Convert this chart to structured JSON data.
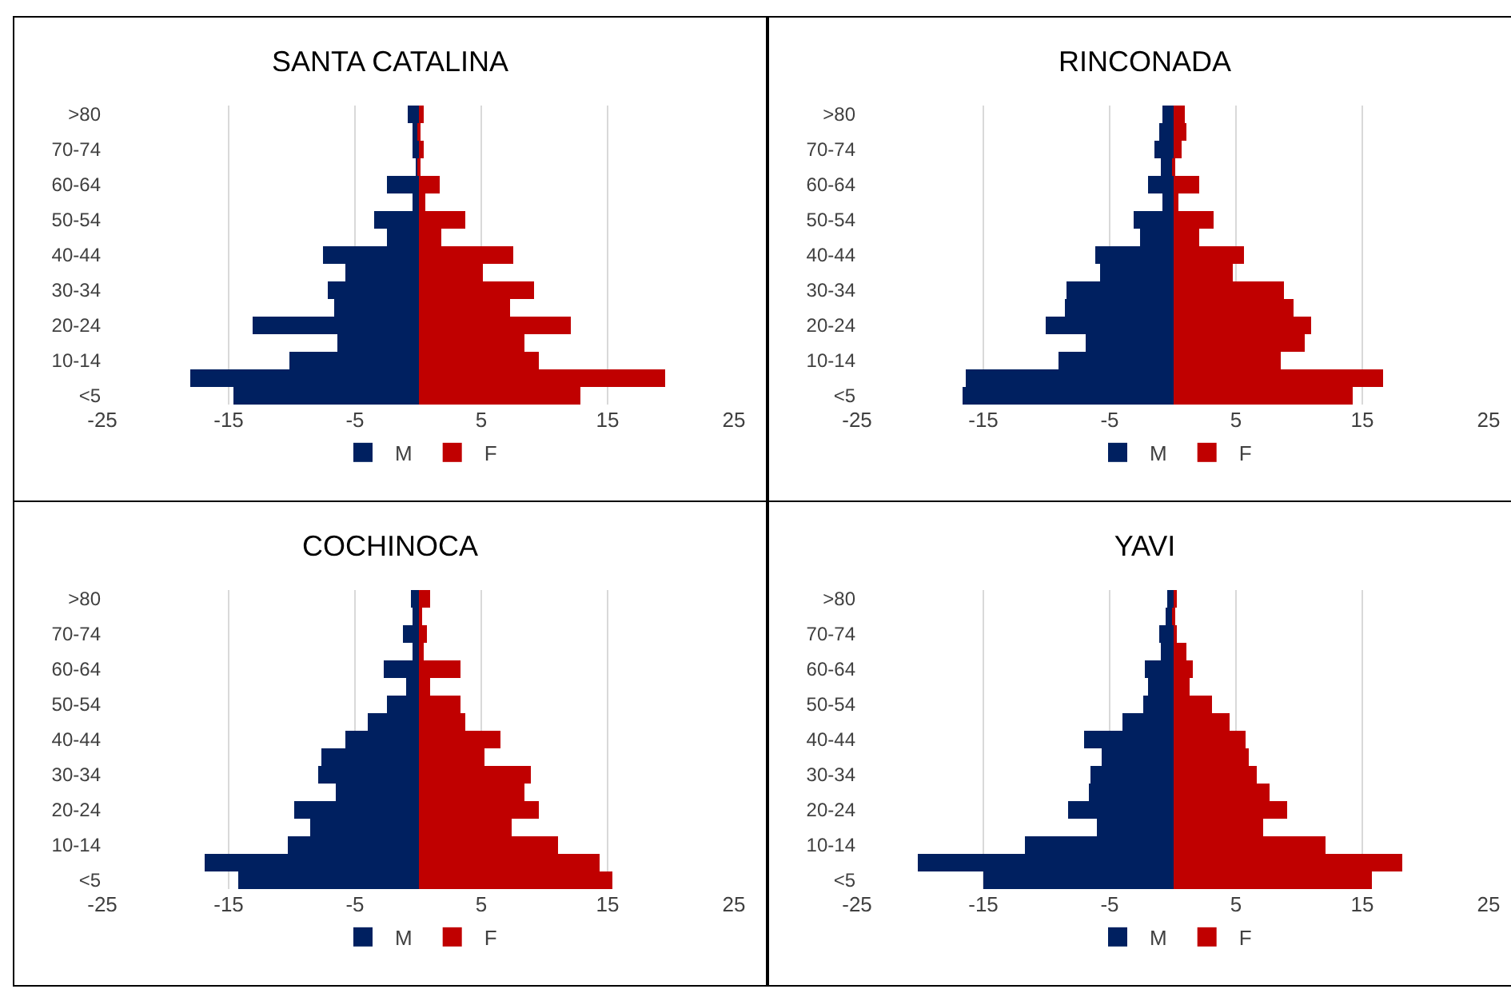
{
  "chart_data": [
    {
      "type": "bar",
      "orientation": "horizontal",
      "title": "SANTA CATALINA",
      "stacked": true,
      "categories": [
        ">80",
        null,
        "70-74",
        null,
        "60-64",
        null,
        "50-54",
        null,
        "40-44",
        null,
        "30-34",
        null,
        "20-24",
        null,
        "10-14",
        null,
        "<5"
      ],
      "xlim": [
        -25,
        25
      ],
      "xticks": [
        -25,
        -15,
        -5,
        5,
        15,
        25
      ],
      "grid": "x",
      "legend": "bottom",
      "series": [
        {
          "name": "M",
          "color": "#002060",
          "values": [
            -0.8,
            -0.4,
            -0.4,
            -0.2,
            -2.5,
            -0.4,
            -3.5,
            -2.5,
            -7.5,
            -5.8,
            -7.2,
            -6.7,
            -13.1,
            -6.4,
            -10.2,
            -18.0,
            -14.6
          ]
        },
        {
          "name": "F",
          "color": "#c00000",
          "values": [
            0.5,
            0.1,
            0.5,
            0.1,
            1.7,
            0.6,
            3.7,
            1.8,
            7.5,
            5.1,
            9.2,
            7.3,
            12.1,
            8.4,
            9.6,
            19.5,
            12.8
          ]
        }
      ]
    },
    {
      "type": "bar",
      "orientation": "horizontal",
      "title": "RINCONADA",
      "stacked": true,
      "categories": [
        ">80",
        null,
        "70-74",
        null,
        "60-64",
        null,
        "50-54",
        null,
        "40-44",
        null,
        "30-34",
        null,
        "20-24",
        null,
        "10-14",
        null,
        "<5"
      ],
      "xlim": [
        -25,
        25
      ],
      "xticks": [
        -25,
        -15,
        -5,
        5,
        15,
        25
      ],
      "grid": "x",
      "legend": "bottom",
      "series": [
        {
          "name": "M",
          "color": "#002060",
          "values": [
            -0.8,
            -1.1,
            -1.4,
            -0.9,
            -2.0,
            -0.8,
            -3.1,
            -2.6,
            -6.2,
            -5.7,
            -8.4,
            -8.6,
            -10.1,
            -6.9,
            -9.0,
            -16.4,
            -16.7
          ]
        },
        {
          "name": "F",
          "color": "#c00000",
          "values": [
            1.0,
            1.1,
            0.7,
            0.2,
            2.1,
            0.5,
            3.2,
            2.1,
            5.6,
            4.8,
            8.8,
            9.6,
            11.0,
            10.5,
            8.5,
            16.6,
            14.3
          ]
        }
      ]
    },
    {
      "type": "bar",
      "orientation": "horizontal",
      "title": "COCHINOCA",
      "stacked": true,
      "categories": [
        ">80",
        null,
        "70-74",
        null,
        "60-64",
        null,
        "50-54",
        null,
        "40-44",
        null,
        "30-34",
        null,
        "20-24",
        null,
        "10-14",
        null,
        "<5"
      ],
      "xlim": [
        -25,
        25
      ],
      "xticks": [
        -25,
        -15,
        -5,
        5,
        15,
        25
      ],
      "grid": "x",
      "legend": "bottom",
      "series": [
        {
          "name": "M",
          "color": "#002060",
          "values": [
            -0.6,
            -0.5,
            -1.2,
            -0.4,
            -2.7,
            -1.0,
            -2.5,
            -4.0,
            -5.7,
            -7.6,
            -7.9,
            -6.5,
            -9.8,
            -8.5,
            -10.3,
            -16.9,
            -14.3
          ]
        },
        {
          "name": "F",
          "color": "#c00000",
          "values": [
            0.9,
            0.3,
            0.7,
            0.5,
            3.4,
            1.0,
            3.4,
            3.7,
            6.5,
            5.3,
            8.9,
            8.4,
            9.5,
            7.4,
            11.1,
            14.4,
            15.4
          ]
        }
      ]
    },
    {
      "type": "bar",
      "orientation": "horizontal",
      "title": "YAVI",
      "stacked": true,
      "categories": [
        ">80",
        null,
        "70-74",
        null,
        "60-64",
        null,
        "50-54",
        null,
        "40-44",
        null,
        "30-34",
        null,
        "20-24",
        null,
        "10-14",
        null,
        "<5"
      ],
      "xlim": [
        -25,
        25
      ],
      "xticks": [
        -25,
        -15,
        -5,
        5,
        15,
        25
      ],
      "grid": "x",
      "legend": "bottom",
      "series": [
        {
          "name": "M",
          "color": "#002060",
          "values": [
            -0.4,
            -0.6,
            -1.1,
            -0.9,
            -2.2,
            -2.0,
            -2.3,
            -4.0,
            -7.0,
            -5.6,
            -6.5,
            -6.6,
            -8.3,
            -6.0,
            -11.7,
            -20.2,
            -15.0
          ]
        },
        {
          "name": "F",
          "color": "#c00000",
          "values": [
            0.3,
            0.1,
            0.3,
            1.1,
            1.6,
            1.3,
            3.1,
            4.5,
            5.7,
            6.0,
            6.6,
            7.6,
            9.0,
            7.1,
            12.1,
            18.2,
            15.8
          ]
        }
      ]
    }
  ]
}
